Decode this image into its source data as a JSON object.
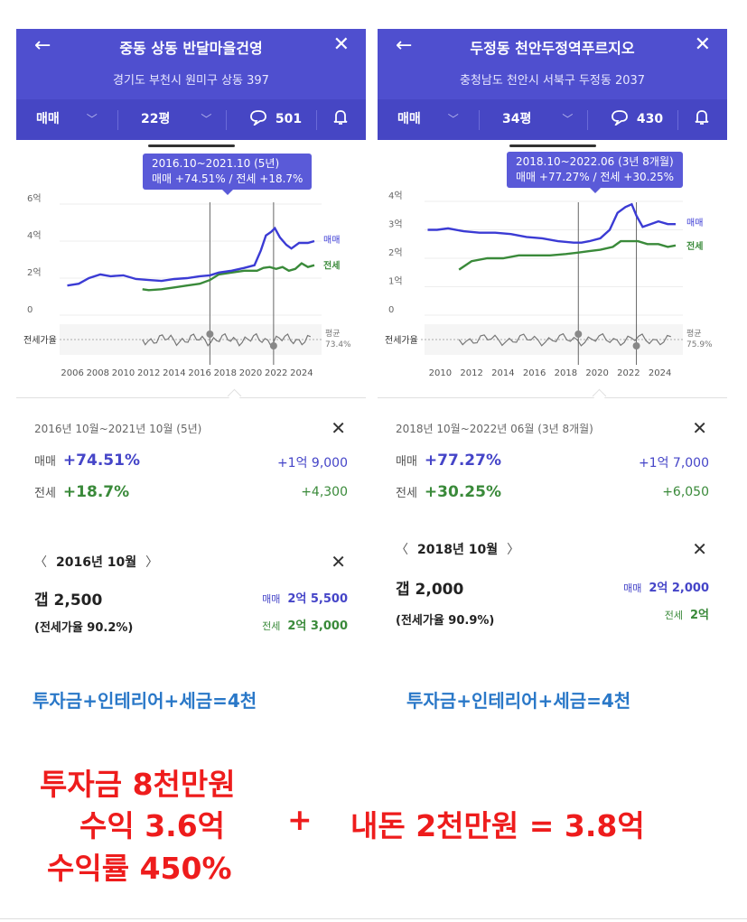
{
  "left": {
    "title": "중동 상동 반달마을건영",
    "address": "경기도 부천시 원미구 상동 397",
    "trade_type": "매매",
    "size": "22평",
    "comments": "501",
    "tooltip_range": "2016.10~2021.10 (5년)",
    "tooltip_values": "매매 +74.51%  /  전세 +18.7%",
    "y_ticks": [
      "6억",
      "4억",
      "2억",
      "0"
    ],
    "x_ticks": [
      "2006",
      "2008",
      "2010",
      "2012",
      "2014",
      "2016",
      "2018",
      "2020",
      "2022",
      "2024"
    ],
    "legend_sale": "매매",
    "legend_jeonse": "전세",
    "ratio_label": "전세가율",
    "avg_label": "평균",
    "avg_value": "73.4%",
    "summary_range": "2016년 10월~2021년 10월 (5년)",
    "sale_label": "매매",
    "sale_pct": "+74.51%",
    "sale_amt": "+1억 9,000",
    "jeonse_label": "전세",
    "jeonse_pct": "+18.7%",
    "jeonse_amt": "+4,300",
    "month": "2016년 10월",
    "gap": "갭 2,500",
    "jeonse_ratio": "(전세가율 90.2%)",
    "detail_sale_label": "매매",
    "detail_sale": "2억 5,500",
    "detail_jeonse_label": "전세",
    "detail_jeonse": "2억 3,000",
    "formula": "투자금+인테리어+세금=4천"
  },
  "right": {
    "title": "두정동 천안두정역푸르지오",
    "address": "충청남도 천안시 서북구 두정동 2037",
    "trade_type": "매매",
    "size": "34평",
    "comments": "430",
    "tooltip_range": "2018.10~2022.06 (3년 8개월)",
    "tooltip_values": "매매 +77.27%  /  전세 +30.25%",
    "y_ticks": [
      "4억",
      "3억",
      "2억",
      "1억",
      "0"
    ],
    "x_ticks": [
      "2010",
      "2012",
      "2014",
      "2016",
      "2018",
      "2020",
      "2022",
      "2024"
    ],
    "legend_sale": "매매",
    "legend_jeonse": "전세",
    "ratio_label": "전세가율",
    "avg_label": "평균",
    "avg_value": "75.9%",
    "summary_range": "2018년 10월~2022년 06월 (3년 8개월)",
    "sale_label": "매매",
    "sale_pct": "+77.27%",
    "sale_amt": "+1억 7,000",
    "jeonse_label": "전세",
    "jeonse_pct": "+30.25%",
    "jeonse_amt": "+6,050",
    "month": "2018년 10월",
    "gap": "갭 2,000",
    "jeonse_ratio": "(전세가율 90.9%)",
    "detail_sale_label": "매매",
    "detail_sale": "2억 2,000",
    "detail_jeonse_label": "전세",
    "detail_jeonse": "2억",
    "formula": "투자금+인테리어+세금=4천"
  },
  "nav": {
    "prev": "〈",
    "next": "〉",
    "back": "←",
    "close": "✕"
  },
  "annotation": {
    "line1": "투자금 8천만원",
    "line2a": "수익 3.6억",
    "plus": "+",
    "line2b": "내돈 2천만원 = 3.8억",
    "line3": "수익률 450%"
  },
  "colors": {
    "header": "#4f4fcf",
    "sale": "#3b3bd4",
    "jeonse": "#3a8a3a",
    "annotation": "#ee1c1c",
    "formula": "#2a78c8"
  },
  "icons": {
    "back": "arrow-left-icon",
    "close": "close-icon",
    "comment": "speech-bubble-icon",
    "bell": "bell-icon",
    "chevron": "chevron-down-icon"
  },
  "chart_data": [
    {
      "type": "line",
      "x_range": [
        2005,
        2025
      ],
      "ylim": [
        0,
        6
      ],
      "series": [
        {
          "name": "매매",
          "x": [
            2005.6,
            2006.5,
            2007.3,
            2008.2,
            2009,
            2010,
            2011,
            2012,
            2013,
            2014,
            2015,
            2016,
            2016.8,
            2017.5,
            2018.5,
            2019.5,
            2020.3,
            2020.8,
            2021.2,
            2021.6,
            2021.9,
            2022.3,
            2022.8,
            2023.2,
            2023.8,
            2024.5,
            2025
          ],
          "y": [
            1.6,
            1.7,
            2.0,
            2.2,
            2.1,
            2.15,
            1.95,
            1.9,
            1.85,
            1.95,
            2.0,
            2.1,
            2.15,
            2.3,
            2.4,
            2.55,
            2.7,
            3.5,
            4.3,
            4.5,
            4.7,
            4.2,
            3.8,
            3.6,
            3.9,
            3.9,
            4.0
          ]
        },
        {
          "name": "전세",
          "x": [
            2011.5,
            2012,
            2013,
            2014,
            2015,
            2016,
            2016.8,
            2017.5,
            2018.5,
            2019.5,
            2020.5,
            2021,
            2021.5,
            2022,
            2022.5,
            2023,
            2023.5,
            2024,
            2024.5,
            2025
          ],
          "y": [
            1.4,
            1.35,
            1.4,
            1.5,
            1.6,
            1.7,
            1.9,
            2.2,
            2.3,
            2.4,
            2.4,
            2.55,
            2.6,
            2.5,
            2.6,
            2.4,
            2.5,
            2.8,
            2.6,
            2.7
          ]
        }
      ]
    },
    {
      "type": "line",
      "x_range": [
        2009,
        2025
      ],
      "ylim": [
        0,
        4
      ],
      "series": [
        {
          "name": "매매",
          "x": [
            2009.2,
            2009.8,
            2010.5,
            2011.5,
            2012.5,
            2013.5,
            2014.5,
            2015.5,
            2016.5,
            2017.5,
            2018.5,
            2019,
            2019.5,
            2020.2,
            2020.8,
            2021.3,
            2021.8,
            2022.2,
            2022.5,
            2022.9,
            2023.4,
            2023.9,
            2024.5,
            2025
          ],
          "y": [
            3.0,
            3.0,
            3.05,
            2.95,
            2.9,
            2.9,
            2.85,
            2.75,
            2.7,
            2.6,
            2.55,
            2.55,
            2.6,
            2.7,
            3.0,
            3.6,
            3.8,
            3.9,
            3.5,
            3.1,
            3.2,
            3.3,
            3.2,
            3.2
          ]
        },
        {
          "name": "전세",
          "x": [
            2011.2,
            2012,
            2013,
            2014,
            2015,
            2016,
            2017,
            2018,
            2018.8,
            2019.5,
            2020.2,
            2021,
            2021.5,
            2022,
            2022.6,
            2023.2,
            2023.9,
            2024.5,
            2025
          ],
          "y": [
            1.6,
            1.9,
            2.0,
            2.0,
            2.1,
            2.1,
            2.1,
            2.15,
            2.2,
            2.25,
            2.3,
            2.4,
            2.6,
            2.6,
            2.6,
            2.5,
            2.5,
            2.4,
            2.45
          ]
        }
      ]
    }
  ]
}
